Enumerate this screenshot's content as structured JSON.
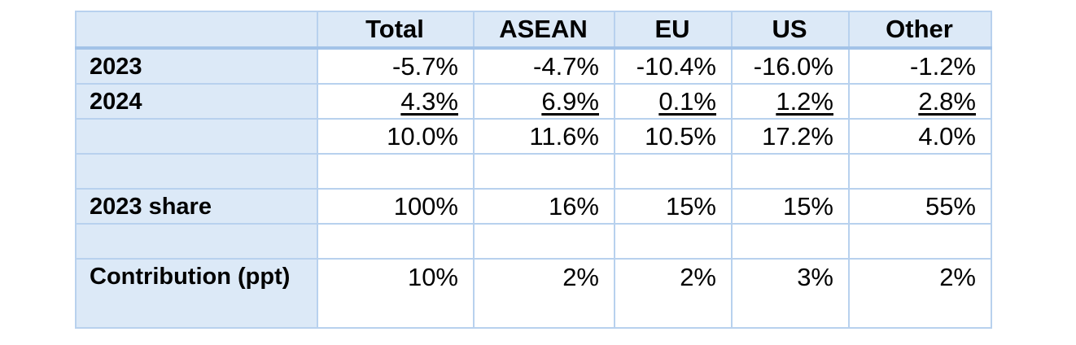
{
  "table": {
    "columns": [
      "Total",
      "ASEAN",
      "EU",
      "US",
      "Other"
    ],
    "rows": [
      {
        "label": "2023",
        "cells": [
          "-5.7%",
          "-4.7%",
          "-10.4%",
          "-16.0%",
          "-1.2%"
        ]
      },
      {
        "label": "2024",
        "cells": [
          "4.3%",
          "6.9%",
          "0.1%",
          "1.2%",
          "2.8%"
        ]
      },
      {
        "cells": [
          "10.0%",
          "11.6%",
          "10.5%",
          "17.2%",
          "4.0%"
        ]
      },
      {
        "label": "2023 share",
        "cells": [
          "100%",
          "16%",
          "15%",
          "15%",
          "55%"
        ]
      },
      {
        "label": "Contribution (ppt)",
        "cells": [
          "10%",
          "2%",
          "2%",
          "3%",
          "2%"
        ]
      }
    ]
  }
}
